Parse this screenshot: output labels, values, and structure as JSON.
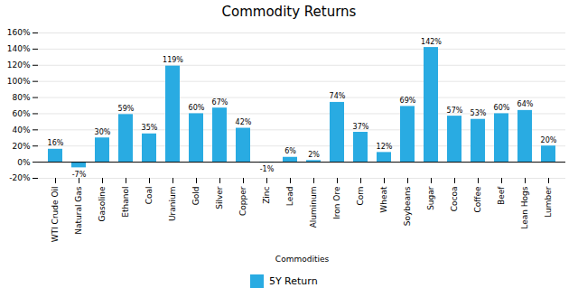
{
  "chart_data": {
    "type": "bar",
    "title": "Commodity Returns",
    "xlabel": "Commodities",
    "categories": [
      "WTI Crude Oil",
      "Natural Gas",
      "Gasoline",
      "Ethanol",
      "Coal",
      "Uranium",
      "Gold",
      "Silver",
      "Copper",
      "Zinc",
      "Lead",
      "Aluminum",
      "Iron Ore",
      "Corn",
      "Wheat",
      "Soybeans",
      "Sugar",
      "Cocoa",
      "Coffee",
      "Beef",
      "Lean Hogs",
      "Lumber"
    ],
    "series": [
      {
        "name": "5Y Return",
        "color": "#29ABE2",
        "values": [
          16,
          -7,
          30,
          59,
          35,
          119,
          60,
          67,
          42,
          -1,
          6,
          2,
          74,
          37,
          12,
          69,
          142,
          57,
          53,
          60,
          64,
          20
        ],
        "value_labels": [
          "16%",
          "-7%",
          "30%",
          "59%",
          "35%",
          "119%",
          "60%",
          "67%",
          "42%",
          "-1%",
          "6%",
          "2%",
          "74%",
          "37%",
          "12%",
          "69%",
          "142%",
          "57%",
          "53%",
          "60%",
          "64%",
          "20%"
        ]
      }
    ],
    "ylim": [
      -20,
      160
    ],
    "yticks": [
      {
        "value": -20,
        "label": "-20%"
      },
      {
        "value": 0,
        "label": "0%"
      },
      {
        "value": 20,
        "label": "20%"
      },
      {
        "value": 40,
        "label": "40%"
      },
      {
        "value": 60,
        "label": "60%"
      },
      {
        "value": 80,
        "label": "80%"
      },
      {
        "value": 100,
        "label": "100%"
      },
      {
        "value": 120,
        "label": "120%"
      },
      {
        "value": 140,
        "label": "140%"
      },
      {
        "value": 160,
        "label": "160%"
      }
    ],
    "grid": true,
    "data_labels": true,
    "legend": "bottom"
  }
}
